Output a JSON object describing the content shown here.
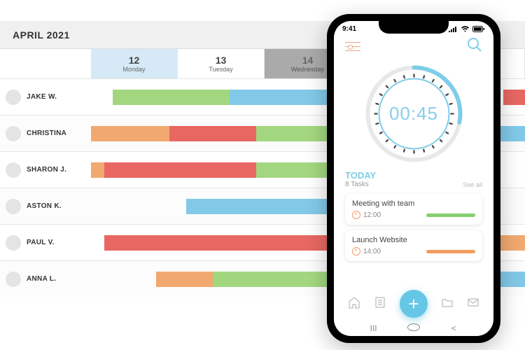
{
  "gantt": {
    "title": "APRIL 2021",
    "title_color": "#333333",
    "header_bg": "#f0f0f0",
    "name_col_width": 130,
    "colors": {
      "green": "#a3d77f",
      "blue": "#82c9e8",
      "orange": "#f2a96f",
      "red": "#e86762"
    },
    "days": [
      {
        "num": "12",
        "name": "Monday",
        "selected": true,
        "dark": false
      },
      {
        "num": "13",
        "name": "Tuesday",
        "selected": false,
        "dark": false
      },
      {
        "num": "14",
        "name": "Wednesday",
        "selected": false,
        "dark": true
      },
      {
        "num": "",
        "name": "",
        "selected": false,
        "dark": false
      },
      {
        "num": "",
        "name": "",
        "selected": false,
        "dark": false
      }
    ],
    "people": [
      {
        "name": "JAKE W.",
        "bars": [
          {
            "color": "green",
            "start": 5,
            "end": 32
          },
          {
            "color": "blue",
            "start": 32,
            "end": 75
          },
          {
            "color": "red",
            "start": 95,
            "end": 100
          }
        ]
      },
      {
        "name": "CHRISTINA",
        "bars": [
          {
            "color": "orange",
            "start": 0,
            "end": 18
          },
          {
            "color": "red",
            "start": 18,
            "end": 38
          },
          {
            "color": "green",
            "start": 38,
            "end": 60
          },
          {
            "color": "blue",
            "start": 88,
            "end": 100
          }
        ]
      },
      {
        "name": "SHARON J.",
        "bars": [
          {
            "color": "orange",
            "start": 0,
            "end": 3
          },
          {
            "color": "red",
            "start": 3,
            "end": 38
          },
          {
            "color": "green",
            "start": 38,
            "end": 65
          }
        ]
      },
      {
        "name": "ASTON K.",
        "bars": [
          {
            "color": "blue",
            "start": 22,
            "end": 70
          }
        ]
      },
      {
        "name": "PAUL V.",
        "bars": [
          {
            "color": "red",
            "start": 3,
            "end": 55
          },
          {
            "color": "orange",
            "start": 73,
            "end": 100
          }
        ]
      },
      {
        "name": "ANNA L.",
        "bars": [
          {
            "color": "orange",
            "start": 15,
            "end": 28
          },
          {
            "color": "green",
            "start": 28,
            "end": 60
          },
          {
            "color": "blue",
            "start": 92,
            "end": 100
          }
        ]
      }
    ]
  },
  "phone": {
    "status_time": "9:41",
    "accent": "#7ecde8",
    "warm": "#f79b67",
    "timer": {
      "value": "00:45",
      "progress_pct": 28,
      "tick_count": 24,
      "ring_color": "#7ecde8",
      "track_color": "#e8e8e8"
    },
    "today": {
      "label": "TODAY",
      "subtitle": "8 Tasks",
      "see_all": "See all",
      "tasks": [
        {
          "title": "Meeting with team",
          "time": "12:00",
          "progress_color": "#85cf6e"
        },
        {
          "title": "Launch Website",
          "time": "14:00",
          "progress_color": "#f29b5f"
        }
      ]
    }
  }
}
